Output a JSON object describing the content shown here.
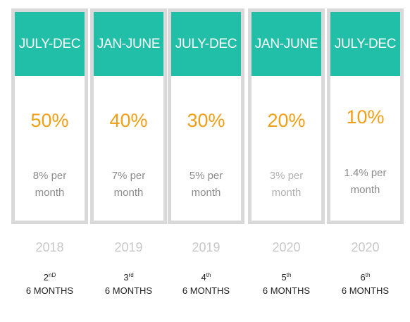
{
  "colors": {
    "header_bg": "#21bfa8",
    "header_text": "#ffffff",
    "card_border": "#d9d9d9",
    "percent": "#f0a018",
    "year": "#c8c8c8"
  },
  "columns": [
    {
      "header": "JULY-DEC",
      "percent": "50%",
      "rate_line1": "8% per",
      "rate_line2": "month",
      "rate_color": "#8c8c8c",
      "year": "2018",
      "ordinal_num": "2",
      "ordinal_suffix": "nD",
      "period_label": "6 MONTHS"
    },
    {
      "header": "JAN-JUNE",
      "percent": "40%",
      "rate_line1": "7% per",
      "rate_line2": "month",
      "rate_color": "#8c8c8c",
      "year": "2019",
      "ordinal_num": "3",
      "ordinal_suffix": "rd",
      "period_label": "6 MONTHS"
    },
    {
      "header": "JULY-DEC",
      "percent": "30%",
      "rate_line1": "5% per",
      "rate_line2": "month",
      "rate_color": "#8c8c8c",
      "year": "2019",
      "ordinal_num": "4",
      "ordinal_suffix": "th",
      "period_label": "6 MONTHS"
    },
    {
      "header": "JAN-JUNE",
      "percent": "20%",
      "rate_line1": "3% per",
      "rate_line2": "month",
      "rate_color": "#b0b0b0",
      "year": "2020",
      "ordinal_num": "5",
      "ordinal_suffix": "th",
      "period_label": "6 MONTHS"
    },
    {
      "header": "JULY-DEC",
      "percent": "10%",
      "rate_line1": "1.4% per",
      "rate_line2": "month",
      "rate_color": "#8c8c8c",
      "year": "2020",
      "ordinal_num": "6",
      "ordinal_suffix": "th",
      "period_label": "6 MONTHS"
    }
  ]
}
